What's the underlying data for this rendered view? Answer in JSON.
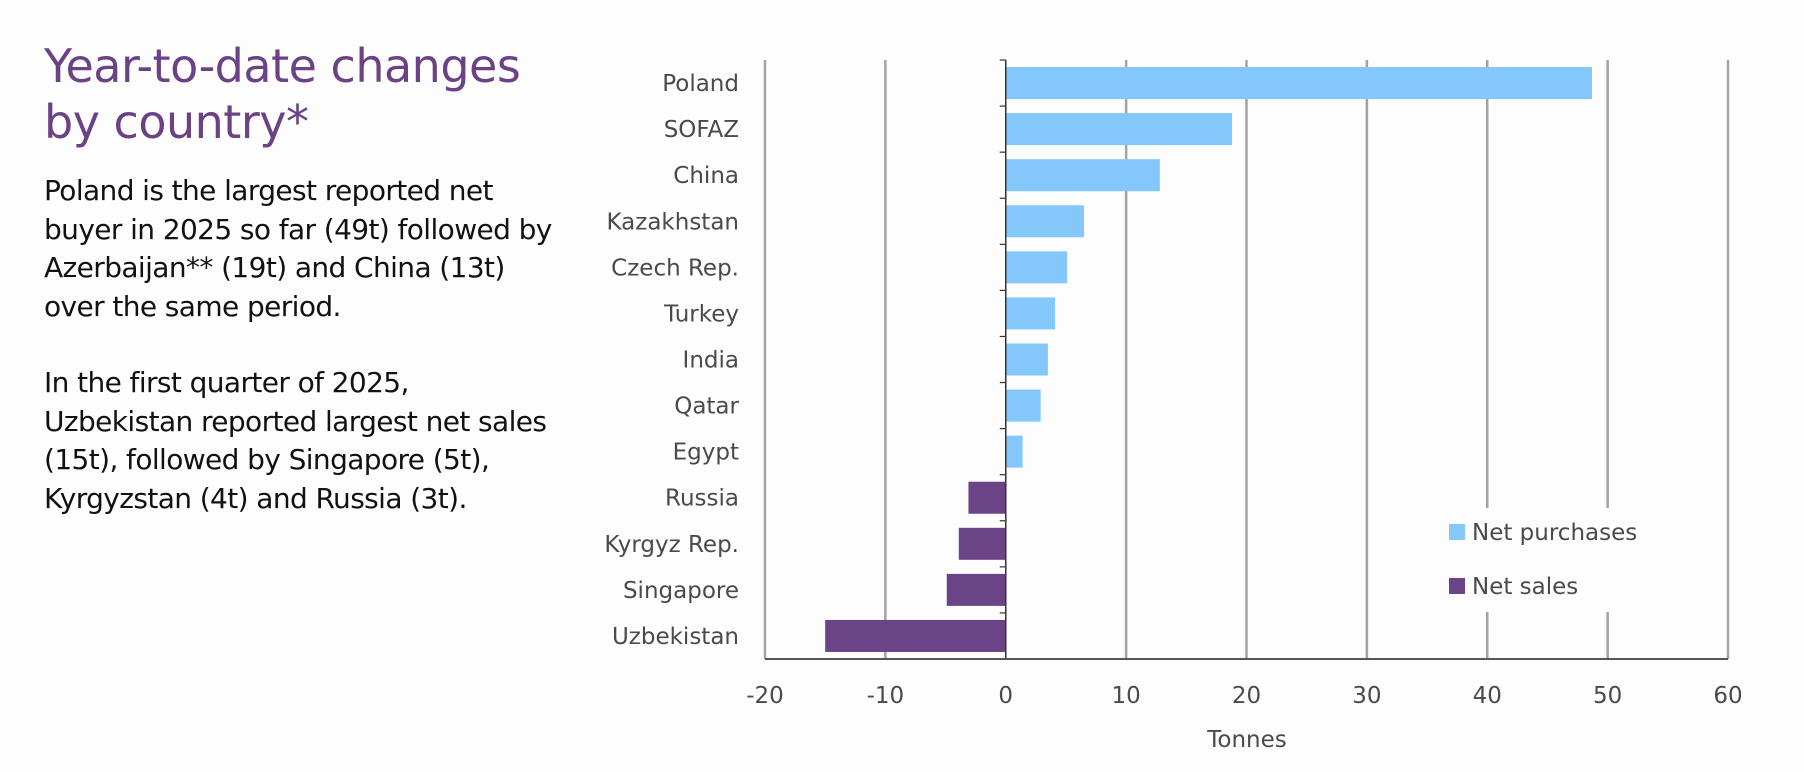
{
  "intro": {
    "title": "Year-to-date changes by country*",
    "paragraphs": [
      "Poland is the largest reported net buyer in 2025 so far (49t) followed by Azerbaijan** (19t) and China (13t) over the same period.",
      "In the first quarter of 2025, Uzbekistan reported largest net sales (15t), followed by Singapore (5t), Kyrgyzstan (4t) and Russia (3t)."
    ]
  },
  "chart_data": {
    "type": "bar",
    "orientation": "horizontal",
    "categories": [
      "Poland",
      "SOFAZ",
      "China",
      "Kazakhstan",
      "Czech Rep.",
      "Turkey",
      "India",
      "Qatar",
      "Egypt",
      "Russia",
      "Kyrgyz Rep.",
      "Singapore",
      "Uzbekistan"
    ],
    "values": [
      48.7,
      18.8,
      12.8,
      6.5,
      5.1,
      4.1,
      3.5,
      2.9,
      1.4,
      -3.1,
      -3.9,
      -4.9,
      -15.0
    ],
    "series": [
      {
        "name": "Net purchases",
        "color": "#84c7fa"
      },
      {
        "name": "Net sales",
        "color": "#6a4486"
      }
    ],
    "xlabel": "Tonnes",
    "ylabel": "",
    "xlim": [
      -20,
      60
    ],
    "xticks": [
      -20,
      -10,
      0,
      10,
      20,
      30,
      40,
      50,
      60
    ],
    "grid": true,
    "legend_position": "bottom-right",
    "colors": {
      "axis": "#555555",
      "grid": "#a3a3a3",
      "tick_text": "#4a4a4a"
    }
  }
}
